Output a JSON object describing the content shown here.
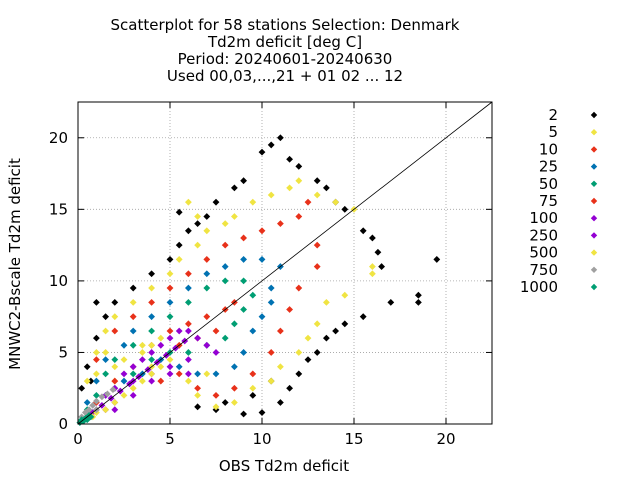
{
  "chart_data": {
    "type": "scatter",
    "title_lines": [
      "Scatterplot for   58 stations Selection: Denmark",
      "Td2m deficit [deg C]",
      "Period: 20240601-20240630",
      "Used 00,03,...,21 + 01 02 ... 12"
    ],
    "xlabel": "OBS Td2m deficit",
    "ylabel": "MNWC2-Bscale Td2m deficit",
    "xlim": [
      0,
      22.5
    ],
    "ylim": [
      0,
      22.5
    ],
    "xticks": [
      0,
      5,
      10,
      15,
      20
    ],
    "yticks": [
      0,
      5,
      10,
      15,
      20
    ],
    "grid": true,
    "legend_position": "right",
    "diagonal_line": true,
    "legend": [
      {
        "label": "2",
        "color": "#000000"
      },
      {
        "label": "5",
        "color": "#f0e442"
      },
      {
        "label": "10",
        "color": "#e8311a"
      },
      {
        "label": "25",
        "color": "#0072b2"
      },
      {
        "label": "50",
        "color": "#009e73"
      },
      {
        "label": "75",
        "color": "#e8311a"
      },
      {
        "label": "100",
        "color": "#9400d3"
      },
      {
        "label": "250",
        "color": "#9400d3"
      },
      {
        "label": "500",
        "color": "#f0e442"
      },
      {
        "label": "750",
        "color": "#a0a0a0"
      },
      {
        "label": "1000",
        "color": "#009e73"
      }
    ],
    "density_regions": [
      {
        "level": "2",
        "color": "#000000",
        "points": [
          [
            0.2,
            2.5
          ],
          [
            0.5,
            4.0
          ],
          [
            1.0,
            6.0
          ],
          [
            1.5,
            7.5
          ],
          [
            2.0,
            8.5
          ],
          [
            3.0,
            9.5
          ],
          [
            4.0,
            10.5
          ],
          [
            5.0,
            11.5
          ],
          [
            5.5,
            12.5
          ],
          [
            6.0,
            13.5
          ],
          [
            6.5,
            14.0
          ],
          [
            7.0,
            14.5
          ],
          [
            5.5,
            14.8
          ],
          [
            7.5,
            15.5
          ],
          [
            8.5,
            16.5
          ],
          [
            9.0,
            17.0
          ],
          [
            10.0,
            19.0
          ],
          [
            10.5,
            19.5
          ],
          [
            11.0,
            20.0
          ],
          [
            11.5,
            18.5
          ],
          [
            12.0,
            18.0
          ],
          [
            13.0,
            17.0
          ],
          [
            13.5,
            16.5
          ],
          [
            14.0,
            15.5
          ],
          [
            14.5,
            15.0
          ],
          [
            15.5,
            13.5
          ],
          [
            16.0,
            13.0
          ],
          [
            16.3,
            12.0
          ],
          [
            16.5,
            11.0
          ],
          [
            19.5,
            11.5
          ],
          [
            18.5,
            9.0
          ],
          [
            18.5,
            8.5
          ],
          [
            17.0,
            8.5
          ],
          [
            15.5,
            7.5
          ],
          [
            14.5,
            7.0
          ],
          [
            14.0,
            6.5
          ],
          [
            13.5,
            6.0
          ],
          [
            13.0,
            5.0
          ],
          [
            12.5,
            4.5
          ],
          [
            12.0,
            3.5
          ],
          [
            11.5,
            2.5
          ],
          [
            11.0,
            1.5
          ],
          [
            10.0,
            0.8
          ],
          [
            9.0,
            0.7
          ],
          [
            8.0,
            1.5
          ],
          [
            7.5,
            1.0
          ],
          [
            6.5,
            1.2
          ],
          [
            10.5,
            3.0
          ],
          [
            9.5,
            2.0
          ],
          [
            1.0,
            8.5
          ],
          [
            0.7,
            3.0
          ]
        ]
      },
      {
        "level": "5",
        "color": "#f0e442",
        "points": [
          [
            0.5,
            3.0
          ],
          [
            1.0,
            5.0
          ],
          [
            1.5,
            6.5
          ],
          [
            2.0,
            7.5
          ],
          [
            3.0,
            8.5
          ],
          [
            4.0,
            9.5
          ],
          [
            5.0,
            10.5
          ],
          [
            5.5,
            11.5
          ],
          [
            6.5,
            12.5
          ],
          [
            7.0,
            13.5
          ],
          [
            8.0,
            14.0
          ],
          [
            8.5,
            14.5
          ],
          [
            9.5,
            15.5
          ],
          [
            10.5,
            16.0
          ],
          [
            11.5,
            16.5
          ],
          [
            12.0,
            17.0
          ],
          [
            13.0,
            16.0
          ],
          [
            14.0,
            15.5
          ],
          [
            15.0,
            15.0
          ],
          [
            16.0,
            11.0
          ],
          [
            16.0,
            10.5
          ],
          [
            14.5,
            9.0
          ],
          [
            13.5,
            8.5
          ],
          [
            13.0,
            7.0
          ],
          [
            12.5,
            6.0
          ],
          [
            12.0,
            5.0
          ],
          [
            11.0,
            4.0
          ],
          [
            10.5,
            3.0
          ],
          [
            9.5,
            2.5
          ],
          [
            8.5,
            1.5
          ],
          [
            7.5,
            1.2
          ],
          [
            6.5,
            2.0
          ],
          [
            2.0,
            3.0
          ],
          [
            3.0,
            2.5
          ],
          [
            3.5,
            5.5
          ],
          [
            4.0,
            4.0
          ],
          [
            2.5,
            4.5
          ],
          [
            6.0,
            15.5
          ],
          [
            6.5,
            14.5
          ]
        ]
      },
      {
        "level": "10",
        "color": "#e8311a",
        "points": [
          [
            1.0,
            4.5
          ],
          [
            2.0,
            6.5
          ],
          [
            3.0,
            7.5
          ],
          [
            4.0,
            8.5
          ],
          [
            5.0,
            9.5
          ],
          [
            6.0,
            10.5
          ],
          [
            7.0,
            11.5
          ],
          [
            8.0,
            12.5
          ],
          [
            9.0,
            13.0
          ],
          [
            10.0,
            13.5
          ],
          [
            11.0,
            14.0
          ],
          [
            12.0,
            14.5
          ],
          [
            12.5,
            15.5
          ],
          [
            13.0,
            12.5
          ],
          [
            13.0,
            11.0
          ],
          [
            12.0,
            9.5
          ],
          [
            11.5,
            8.0
          ],
          [
            11.0,
            6.5
          ],
          [
            10.5,
            5.0
          ],
          [
            9.5,
            3.5
          ],
          [
            8.5,
            2.5
          ],
          [
            7.5,
            2.0
          ],
          [
            6.5,
            2.5
          ],
          [
            5.5,
            3.5
          ],
          [
            4.5,
            3.0
          ]
        ]
      },
      {
        "level": "25",
        "color": "#0072b2",
        "points": [
          [
            0.5,
            1.5
          ],
          [
            1.0,
            3.0
          ],
          [
            1.5,
            4.5
          ],
          [
            2.5,
            5.5
          ],
          [
            3.0,
            6.5
          ],
          [
            4.0,
            7.5
          ],
          [
            5.0,
            8.5
          ],
          [
            6.0,
            9.5
          ],
          [
            7.0,
            10.5
          ],
          [
            8.0,
            11.0
          ],
          [
            9.0,
            11.5
          ],
          [
            10.0,
            11.5
          ],
          [
            11.0,
            11.0
          ],
          [
            10.5,
            9.5
          ],
          [
            10.5,
            8.5
          ],
          [
            10.0,
            7.5
          ],
          [
            9.5,
            6.5
          ],
          [
            9.0,
            5.0
          ],
          [
            8.5,
            4.0
          ],
          [
            7.5,
            3.5
          ],
          [
            6.5,
            3.5
          ],
          [
            5.5,
            4.0
          ],
          [
            4.5,
            4.5
          ],
          [
            3.5,
            3.5
          ],
          [
            2.5,
            3.0
          ],
          [
            1.5,
            2.0
          ]
        ]
      },
      {
        "level": "50",
        "color": "#009e73",
        "points": [
          [
            0.5,
            1.0
          ],
          [
            1.0,
            2.0
          ],
          [
            1.5,
            3.5
          ],
          [
            2.0,
            4.5
          ],
          [
            3.0,
            5.5
          ],
          [
            4.0,
            6.5
          ],
          [
            5.0,
            7.5
          ],
          [
            6.0,
            8.5
          ],
          [
            7.0,
            9.5
          ],
          [
            8.0,
            10.0
          ],
          [
            9.0,
            10.0
          ],
          [
            9.5,
            9.0
          ],
          [
            9.0,
            8.0
          ],
          [
            8.5,
            7.0
          ],
          [
            8.0,
            6.0
          ],
          [
            7.0,
            5.5
          ],
          [
            6.0,
            5.0
          ],
          [
            5.0,
            5.0
          ],
          [
            4.0,
            4.5
          ],
          [
            3.0,
            3.5
          ],
          [
            2.0,
            2.5
          ]
        ]
      },
      {
        "level": "75",
        "color": "#e8311a",
        "points": [
          [
            1.0,
            1.5
          ],
          [
            2.0,
            3.0
          ],
          [
            3.0,
            4.0
          ],
          [
            4.0,
            5.5
          ],
          [
            5.0,
            6.5
          ],
          [
            6.0,
            7.0
          ],
          [
            7.0,
            7.5
          ],
          [
            8.0,
            8.0
          ],
          [
            8.5,
            8.5
          ],
          [
            7.5,
            6.5
          ],
          [
            6.5,
            6.0
          ],
          [
            5.5,
            5.5
          ]
        ]
      },
      {
        "level": "100",
        "color": "#9400d3",
        "points": [
          [
            0.5,
            0.5
          ],
          [
            1.0,
            1.0
          ],
          [
            1.5,
            2.0
          ],
          [
            2.0,
            2.5
          ],
          [
            2.5,
            3.5
          ],
          [
            3.0,
            4.0
          ],
          [
            3.5,
            4.5
          ],
          [
            4.0,
            5.0
          ],
          [
            4.5,
            5.5
          ],
          [
            5.0,
            6.0
          ],
          [
            5.5,
            6.5
          ],
          [
            6.0,
            6.5
          ],
          [
            6.5,
            6.0
          ],
          [
            7.0,
            5.5
          ],
          [
            7.5,
            5.0
          ],
          [
            6.0,
            4.5
          ],
          [
            5.0,
            4.0
          ],
          [
            4.0,
            3.5
          ],
          [
            3.0,
            3.0
          ],
          [
            2.0,
            1.5
          ],
          [
            1.5,
            1.0
          ]
        ]
      },
      {
        "level": "250",
        "color": "#9400d3",
        "points": [
          [
            0.3,
            0.3
          ],
          [
            0.8,
            0.8
          ],
          [
            1.3,
            1.3
          ],
          [
            1.8,
            1.8
          ],
          [
            2.3,
            2.3
          ],
          [
            2.8,
            2.8
          ],
          [
            3.3,
            3.3
          ],
          [
            3.8,
            3.8
          ],
          [
            4.3,
            4.3
          ],
          [
            4.8,
            4.8
          ],
          [
            5.3,
            5.3
          ],
          [
            5.8,
            5.8
          ],
          [
            2.0,
            1.0
          ],
          [
            3.0,
            2.0
          ],
          [
            4.0,
            3.0
          ],
          [
            5.0,
            3.5
          ],
          [
            6.0,
            3.5
          ]
        ]
      },
      {
        "level": "500",
        "color": "#f0e442",
        "points": [
          [
            0.2,
            0.2
          ],
          [
            0.5,
            0.5
          ],
          [
            0.8,
            0.5
          ],
          [
            1.0,
            0.8
          ],
          [
            1.5,
            1.0
          ],
          [
            2.0,
            1.5
          ],
          [
            2.5,
            2.0
          ],
          [
            3.0,
            2.5
          ],
          [
            3.5,
            3.0
          ],
          [
            4.0,
            3.5
          ],
          [
            4.5,
            4.0
          ],
          [
            5.0,
            4.5
          ],
          [
            4.0,
            5.5
          ],
          [
            4.5,
            6.0
          ],
          [
            3.5,
            5.0
          ],
          [
            2.0,
            4.0
          ],
          [
            1.5,
            5.0
          ],
          [
            1.0,
            3.5
          ],
          [
            6.0,
            3.0
          ],
          [
            7.0,
            3.5
          ]
        ]
      },
      {
        "level": "750",
        "color": "#a0a0a0",
        "points": [
          [
            0.2,
            0.5
          ],
          [
            0.4,
            0.8
          ],
          [
            0.6,
            1.0
          ],
          [
            0.8,
            1.3
          ],
          [
            1.0,
            1.6
          ],
          [
            1.3,
            1.9
          ],
          [
            1.6,
            2.1
          ],
          [
            1.9,
            2.4
          ],
          [
            0.6,
            0.5
          ],
          [
            1.0,
            1.0
          ]
        ]
      },
      {
        "level": "1000",
        "color": "#009e73",
        "points": [
          [
            0.1,
            0.1
          ],
          [
            0.2,
            0.3
          ],
          [
            0.3,
            0.2
          ],
          [
            0.4,
            0.4
          ],
          [
            0.5,
            0.3
          ],
          [
            0.6,
            0.6
          ],
          [
            0.7,
            0.5
          ]
        ]
      }
    ]
  }
}
